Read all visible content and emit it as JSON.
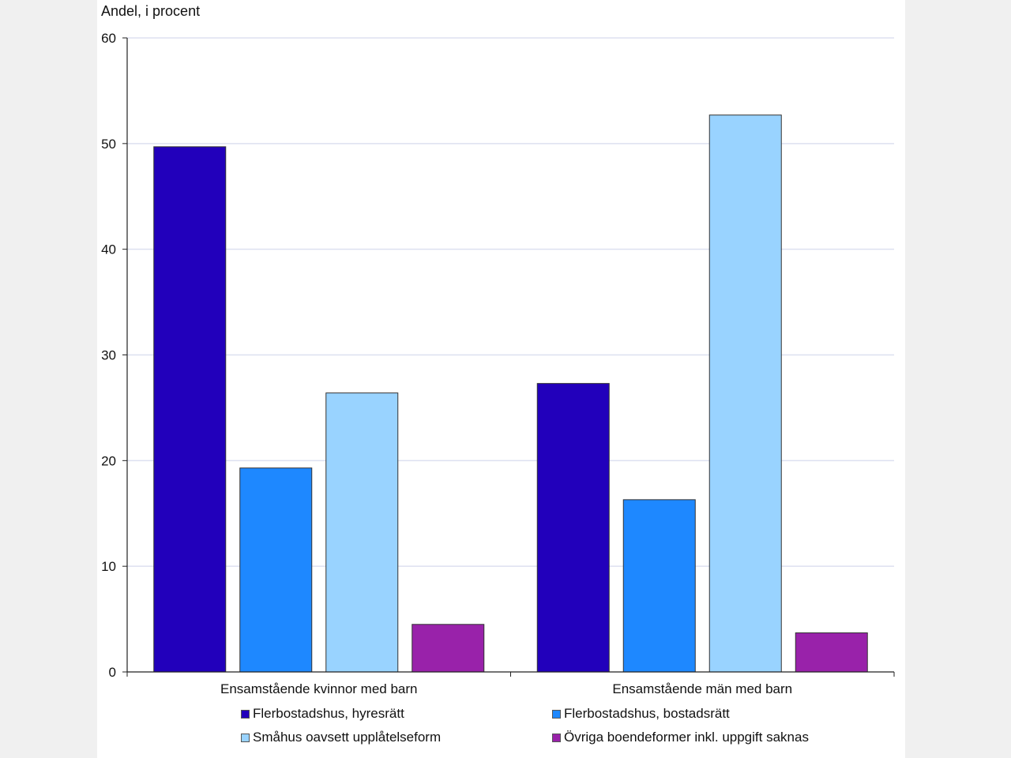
{
  "chart_data": {
    "type": "bar",
    "ylabel": "Andel, i procent",
    "xlabel": "",
    "ylim": [
      0,
      60
    ],
    "yticks": [
      0,
      10,
      20,
      30,
      40,
      50,
      60
    ],
    "grid": true,
    "legend_position": "bottom",
    "categories": [
      "Ensamstående kvinnor med barn",
      "Ensamstående män med barn"
    ],
    "series": [
      {
        "name": "Flerbostadshus, hyresrätt",
        "color": "#2200bb",
        "values": [
          49.7,
          27.3
        ]
      },
      {
        "name": "Flerbostadshus, bostadsrätt",
        "color": "#1e88ff",
        "values": [
          19.3,
          16.3
        ]
      },
      {
        "name": "Småhus oavsett upplåtelseform",
        "color": "#99d3ff",
        "values": [
          26.4,
          52.7
        ]
      },
      {
        "name": "Övriga boendeformer inkl. uppgift saknas",
        "color": "#9922aa",
        "values": [
          4.5,
          3.7
        ]
      }
    ]
  }
}
